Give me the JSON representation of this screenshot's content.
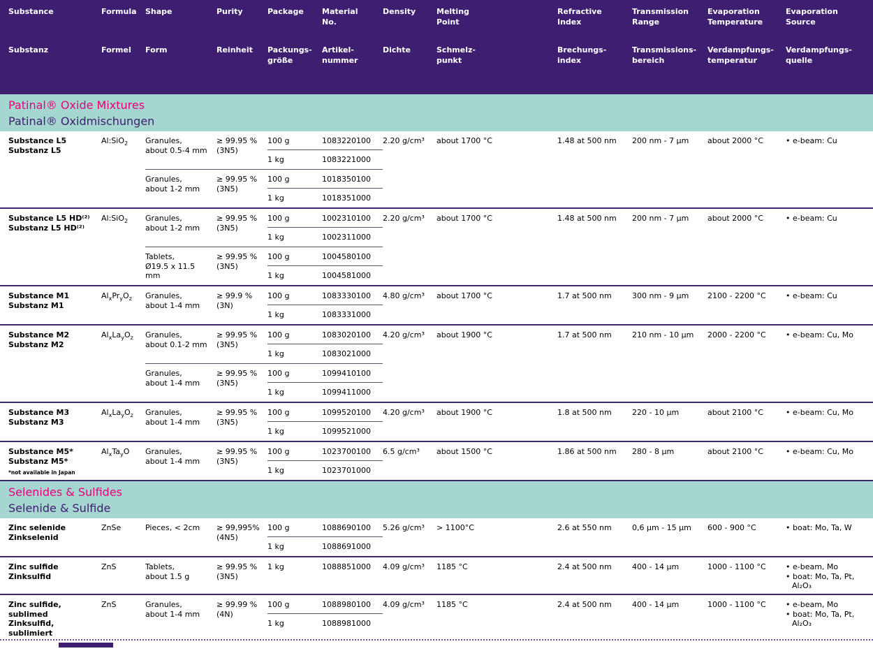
{
  "header": {
    "columns": [
      {
        "en": "Substance",
        "de": "Substanz"
      },
      {
        "en": "Formula",
        "de": "Formel"
      },
      {
        "en": "Shape",
        "de": "Form"
      },
      {
        "en": "Purity",
        "de": "Reinheit"
      },
      {
        "en": "Package",
        "de": "Packungs-\ngröße"
      },
      {
        "en": "Material\nNo.",
        "de": "Artikel-\nnummer"
      },
      {
        "en": "Density",
        "de": "Dichte"
      },
      {
        "en": "Melting\nPoint",
        "de": "Schmelz-\npunkt"
      },
      {
        "en": "Refractive\nIndex",
        "de": "Brechungs-\nindex"
      },
      {
        "en": "Transmission\nRange",
        "de": "Transmissions-\nbereich"
      },
      {
        "en": "Evaporation\nTemperature",
        "de": "Verdampfungs-\ntemperatur"
      },
      {
        "en": "Evaporation\nSource",
        "de": "Verdampfungs-\nquelle"
      }
    ]
  },
  "colors": {
    "header_bg": "#3d1e70",
    "band_bg": "#a5d6cf",
    "band_magenta": "#e5007d",
    "band_purple": "#3d1e70"
  },
  "sections": [
    {
      "title_en": "Patinal® Oxide Mixtures",
      "title_de": "Patinal® Oxidmischungen",
      "rows": [
        {
          "name_en": "Substance L5",
          "name_de": "Substanz L5",
          "footnote": "",
          "formula_html": "Al:SiO<sub>2</sub>",
          "variants": [
            {
              "shape": "Granules,\nabout 0.5-4 mm",
              "purity": "≥ 99.95 %\n(3N5)",
              "packages": [
                {
                  "size": "100 g",
                  "material_no": "1083220100"
                },
                {
                  "size": "1 kg",
                  "material_no": "1083221000"
                }
              ]
            },
            {
              "shape": "Granules,\nabout 1-2 mm",
              "purity": "≥ 99.95 %\n(3N5)",
              "packages": [
                {
                  "size": "100 g",
                  "material_no": "1018350100"
                },
                {
                  "size": "1 kg",
                  "material_no": "1018351000"
                }
              ]
            }
          ],
          "density": "2.20 g/cm³",
          "melting_point": "about 1700 °C",
          "refractive_index": "1.48 at 500 nm",
          "transmission_range": "200 nm - 7 µm",
          "evaporation_temperature": "about 2000 °C",
          "evaporation_source": [
            "• e-beam: Cu"
          ]
        },
        {
          "name_en": "Substance L5 HD⁽²⁾",
          "name_de": "Substanz L5 HD⁽²⁾",
          "footnote": "",
          "formula_html": "Al:SiO<sub>2</sub>",
          "variants": [
            {
              "shape": "Granules,\nabout 1-2 mm",
              "purity": "≥ 99.95 %\n(3N5)",
              "packages": [
                {
                  "size": "100 g",
                  "material_no": "1002310100"
                },
                {
                  "size": "1 kg",
                  "material_no": "1002311000"
                }
              ]
            },
            {
              "shape": "Tablets,\nØ19.5 x 11.5 mm",
              "purity": "≥ 99.95 %\n(3N5)",
              "packages": [
                {
                  "size": "100 g",
                  "material_no": "1004580100"
                },
                {
                  "size": "1 kg",
                  "material_no": "1004581000"
                }
              ]
            }
          ],
          "density": "2.20 g/cm³",
          "melting_point": "about 1700 °C",
          "refractive_index": "1.48 at 500 nm",
          "transmission_range": "200 nm - 7 µm",
          "evaporation_temperature": "about 2000 °C",
          "evaporation_source": [
            "• e-beam: Cu"
          ]
        },
        {
          "name_en": "Substance M1",
          "name_de": "Substanz M1",
          "footnote": "",
          "formula_html": "Al<sub>x</sub>Pr<sub>y</sub>O<sub>z</sub>",
          "variants": [
            {
              "shape": "Granules,\nabout 1-4 mm",
              "purity": "≥ 99.9 %\n(3N)",
              "packages": [
                {
                  "size": "100 g",
                  "material_no": "1083330100"
                },
                {
                  "size": "1 kg",
                  "material_no": "1083331000"
                }
              ]
            }
          ],
          "density": "4.80 g/cm³",
          "melting_point": "about 1700 °C",
          "refractive_index": "1.7 at 500 nm",
          "transmission_range": "300 nm - 9 µm",
          "evaporation_temperature": "2100 - 2200 °C",
          "evaporation_source": [
            "• e-beam: Cu"
          ]
        },
        {
          "name_en": "Substance M2",
          "name_de": "Substanz M2",
          "footnote": "",
          "formula_html": "Al<sub>x</sub>La<sub>y</sub>O<sub>z</sub>",
          "variants": [
            {
              "shape": "Granules,\nabout 0.1-2 mm",
              "purity": "≥ 99.95 %\n(3N5)",
              "packages": [
                {
                  "size": "100 g",
                  "material_no": "1083020100"
                },
                {
                  "size": "1 kg",
                  "material_no": "1083021000"
                }
              ]
            },
            {
              "shape": "Granules,\nabout 1-4 mm",
              "purity": "≥ 99.95 %\n(3N5)",
              "packages": [
                {
                  "size": "100 g",
                  "material_no": "1099410100"
                },
                {
                  "size": "1 kg",
                  "material_no": "1099411000"
                }
              ]
            }
          ],
          "density": "4.20 g/cm³",
          "melting_point": "about 1900 °C",
          "refractive_index": "1.7 at 500 nm",
          "transmission_range": "210 nm - 10 µm",
          "evaporation_temperature": "2000 - 2200 °C",
          "evaporation_source": [
            "• e-beam: Cu, Mo"
          ]
        },
        {
          "name_en": "Substance M3",
          "name_de": "Substanz M3",
          "footnote": "",
          "formula_html": "Al<sub>x</sub>La<sub>y</sub>O<sub>z</sub>",
          "variants": [
            {
              "shape": "Granules,\nabout 1-4 mm",
              "purity": "≥ 99.95 %\n(3N5)",
              "packages": [
                {
                  "size": "100 g",
                  "material_no": "1099520100"
                },
                {
                  "size": "1 kg",
                  "material_no": "1099521000"
                }
              ]
            }
          ],
          "density": "4.20 g/cm³",
          "melting_point": "about 1900 °C",
          "refractive_index": "1.8 at 500 nm",
          "transmission_range": "220 - 10 µm",
          "evaporation_temperature": "about 2100 °C",
          "evaporation_source": [
            "• e-beam: Cu, Mo"
          ]
        },
        {
          "name_en": "Substance M5*",
          "name_de": "Substanz M5*",
          "footnote": "*not available in Japan",
          "formula_html": "Al<sub>x</sub>Ta<sub>y</sub>O",
          "variants": [
            {
              "shape": "Granules,\nabout 1-4 mm",
              "purity": "≥ 99.95 %\n(3N5)",
              "packages": [
                {
                  "size": "100 g",
                  "material_no": "1023700100"
                },
                {
                  "size": "1 kg",
                  "material_no": "1023701000"
                }
              ]
            }
          ],
          "density": "6.5 g/cm³",
          "melting_point": "about 1500 °C",
          "refractive_index": "1.86 at 500 nm",
          "transmission_range": "280 - 8 µm",
          "evaporation_temperature": "about 2100 °C",
          "evaporation_source": [
            "• e-beam: Cu, Mo"
          ]
        }
      ]
    },
    {
      "title_en": "Selenides & Sulfides",
      "title_de": "Selenide & Sulfide",
      "rows": [
        {
          "name_en": "Zinc selenide",
          "name_de": "Zinkselenid",
          "footnote": "",
          "formula_html": "ZnSe",
          "variants": [
            {
              "shape": "Pieces, < 2cm",
              "purity": "≥ 99,995%\n(4N5)",
              "packages": [
                {
                  "size": "100 g",
                  "material_no": "1088690100"
                },
                {
                  "size": "1 kg",
                  "material_no": "1088691000"
                }
              ]
            }
          ],
          "density": "5.26 g/cm³",
          "melting_point": "> 1100°C",
          "refractive_index": "2.6 at 550 nm",
          "transmission_range": "0,6 µm - 15 µm",
          "evaporation_temperature": "600 - 900 °C",
          "evaporation_source": [
            "• boat: Mo, Ta, W"
          ]
        },
        {
          "name_en": "Zinc sulfide",
          "name_de": "Zinksulfid",
          "footnote": "",
          "formula_html": "ZnS",
          "variants": [
            {
              "shape": "Tablets,\nabout 1.5 g",
              "purity": "≥ 99.95 %\n(3N5)",
              "packages": [
                {
                  "size": "1 kg",
                  "material_no": "1088851000"
                }
              ]
            }
          ],
          "density": "4.09 g/cm³",
          "melting_point": "1185 °C",
          "refractive_index": "2.4 at 500 nm",
          "transmission_range": "400 - 14 µm",
          "evaporation_temperature": "1000 - 1100 °C",
          "evaporation_source": [
            "• e-beam, Mo",
            "• boat: Mo, Ta, Pt, Al₂O₃"
          ]
        },
        {
          "name_en": "Zinc sulfide,\nsublimed",
          "name_de": "Zinksulfid,\nsublimiert",
          "footnote": "",
          "formula_html": "ZnS",
          "variants": [
            {
              "shape": "Granules,\nabout 1-4 mm",
              "purity": "≥ 99.99 %\n(4N)",
              "packages": [
                {
                  "size": "100 g",
                  "material_no": "1088980100"
                },
                {
                  "size": "1 kg",
                  "material_no": "1088981000"
                }
              ]
            }
          ],
          "density": "4.09 g/cm³",
          "melting_point": "1185 °C",
          "refractive_index": "2.4 at 500 nm",
          "transmission_range": "400 - 14 µm",
          "evaporation_temperature": "1000 - 1100 °C",
          "evaporation_source": [
            "• e-beam, Mo",
            "• boat: Mo, Ta, Pt, Al₂O₃"
          ]
        }
      ]
    }
  ]
}
